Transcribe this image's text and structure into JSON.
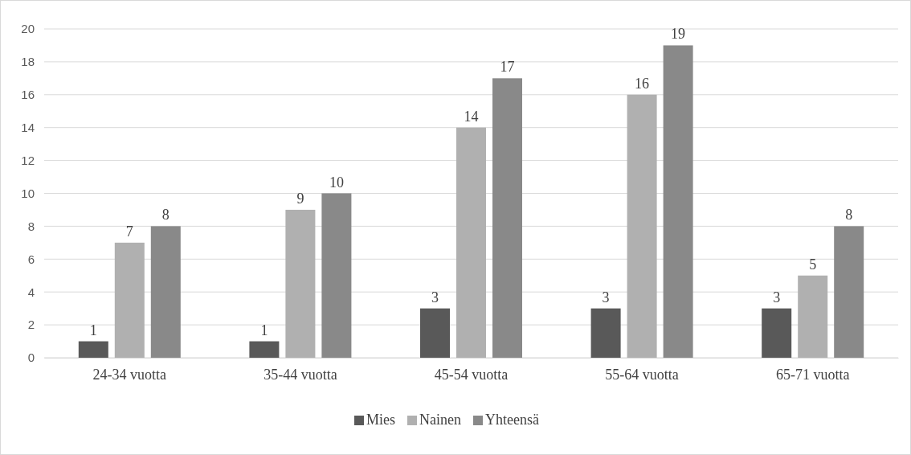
{
  "chart_data": {
    "type": "bar",
    "categories": [
      "24-34 vuotta",
      "35-44 vuotta",
      "45-54 vuotta",
      "55-64 vuotta",
      "65-71 vuotta"
    ],
    "series": [
      {
        "name": "Mies",
        "color": "#595959",
        "values": [
          1,
          1,
          3,
          3,
          3
        ]
      },
      {
        "name": "Nainen",
        "color": "#b0b0b0",
        "values": [
          7,
          9,
          14,
          16,
          5
        ]
      },
      {
        "name": "Yhteensä",
        "color": "#898989",
        "values": [
          8,
          10,
          17,
          19,
          8
        ]
      }
    ],
    "ylim": [
      0,
      20
    ],
    "yticks": [
      0,
      2,
      4,
      6,
      8,
      10,
      12,
      14,
      16,
      18,
      20
    ],
    "grid": "y",
    "legend": "bottom",
    "data_labels": true
  }
}
